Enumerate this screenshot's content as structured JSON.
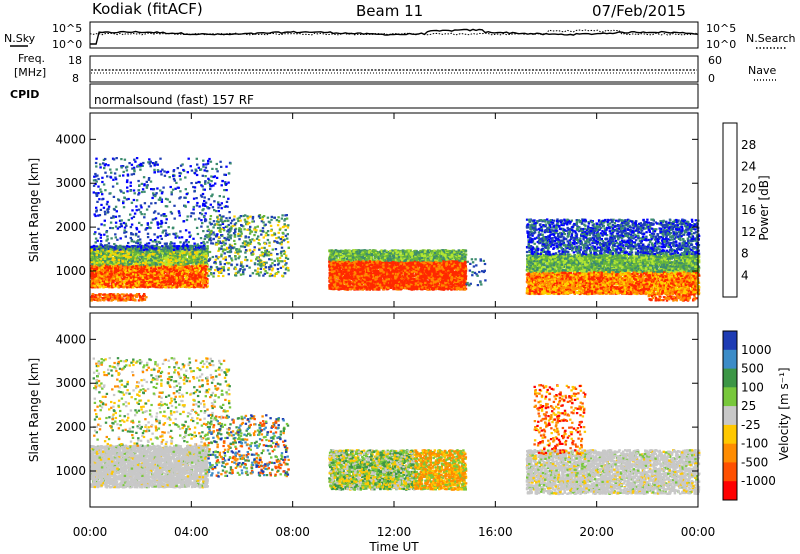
{
  "header": {
    "station": "Kodiak (fitACF)",
    "beam": "Beam 11",
    "date": "07/Feb/2015"
  },
  "top_panels": {
    "nsky_label": "N.Sky",
    "nsearch_label": "N.Search",
    "freq_label_1": "Freq.",
    "freq_label_2": "[MHz]",
    "nave_label": "Nave",
    "cpid_label": "CPID",
    "cpid_text": "normalsound (fast) 157 RF",
    "noise_ticks_left": [
      "10^5",
      "10^0"
    ],
    "noise_ticks_right": [
      "10^5",
      "10^0"
    ],
    "freq_ticks": [
      "18",
      "8"
    ],
    "nave_ticks": [
      "60",
      "0"
    ]
  },
  "chart_data": [
    {
      "type": "heatmap",
      "name": "power",
      "ylabel": "Slant Range [km]",
      "ylim": [
        180,
        4600
      ],
      "yticks": [
        "1000",
        "2000",
        "3000",
        "4000"
      ],
      "xlim": [
        0,
        24
      ],
      "colorbar": {
        "label": "Power [dB]",
        "ticks": [
          "4",
          "8",
          "12",
          "16",
          "20",
          "24",
          "28"
        ],
        "colors": [
          "#0000ff",
          "#1e3fb4",
          "#3c8c6e",
          "#64b43c",
          "#b4e632",
          "#ffd200",
          "#ff8c00",
          "#ff2800"
        ]
      }
    },
    {
      "type": "heatmap",
      "name": "velocity",
      "ylabel": "Slant Range [km]",
      "ylim": [
        180,
        4600
      ],
      "yticks": [
        "1000",
        "2000",
        "3000",
        "4000"
      ],
      "xlim": [
        0,
        24
      ],
      "colorbar": {
        "label": "Velocity [m s⁻¹]",
        "ticks": [
          "1000",
          "500",
          "100",
          "25",
          "-25",
          "-100",
          "-500",
          "-1000"
        ],
        "colors": [
          "#1e3cb4",
          "#3c8cc8",
          "#3c9646",
          "#78c83c",
          "#c8c8c8",
          "#ffc800",
          "#ff8c00",
          "#ff5000",
          "#ff0000"
        ]
      }
    }
  ],
  "xaxis": {
    "ticks": [
      "00:00",
      "04:00",
      "08:00",
      "12:00",
      "16:00",
      "20:00",
      "00:00"
    ],
    "label": "Time UT"
  }
}
